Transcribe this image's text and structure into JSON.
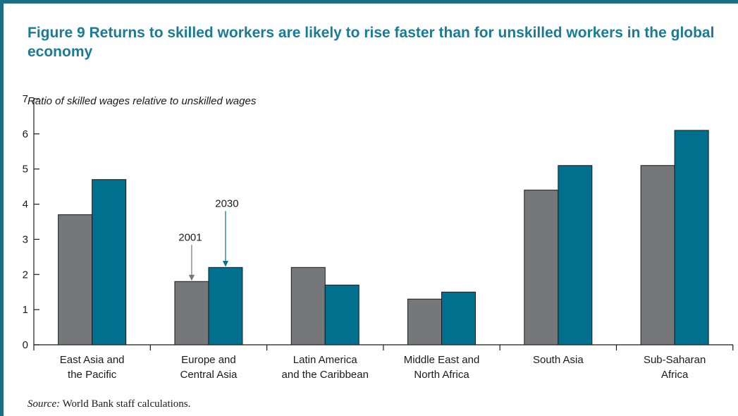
{
  "title": "Figure 9  Returns to skilled workers are likely to rise faster than for unskilled workers in the global economy",
  "source_label": "Source:",
  "source_text": " World Bank staff calculations.",
  "colors": {
    "frame": "#1b6f85",
    "title": "#1b7b94",
    "series_2001": "#76777b",
    "series_2030": "#00708e",
    "axis": "#1a1a1a"
  },
  "chart_data": {
    "type": "bar",
    "title": "Figure 9  Returns to skilled workers are likely to rise faster than for unskilled workers in the global economy",
    "ylabel": "Ratio of skilled wages relative to unskilled wages",
    "xlabel": "",
    "ylim": [
      0,
      7
    ],
    "yticks": [
      0,
      1,
      2,
      3,
      4,
      5,
      6,
      7
    ],
    "grid": false,
    "categories": [
      [
        "East Asia and",
        "the Pacific"
      ],
      [
        "Europe and",
        "Central Asia"
      ],
      [
        "Latin America",
        "and the Caribbean"
      ],
      [
        "Middle East and",
        "North Africa"
      ],
      [
        "South Asia"
      ],
      [
        "Sub-Saharan",
        "Africa"
      ]
    ],
    "series": [
      {
        "name": "2001",
        "values": [
          3.7,
          1.8,
          2.2,
          1.3,
          4.4,
          5.1
        ]
      },
      {
        "name": "2030",
        "values": [
          4.7,
          2.2,
          1.7,
          1.5,
          5.1,
          6.1
        ]
      }
    ],
    "annotations": [
      {
        "text": "2001",
        "series": 0,
        "category": 1
      },
      {
        "text": "2030",
        "series": 1,
        "category": 1
      }
    ]
  }
}
